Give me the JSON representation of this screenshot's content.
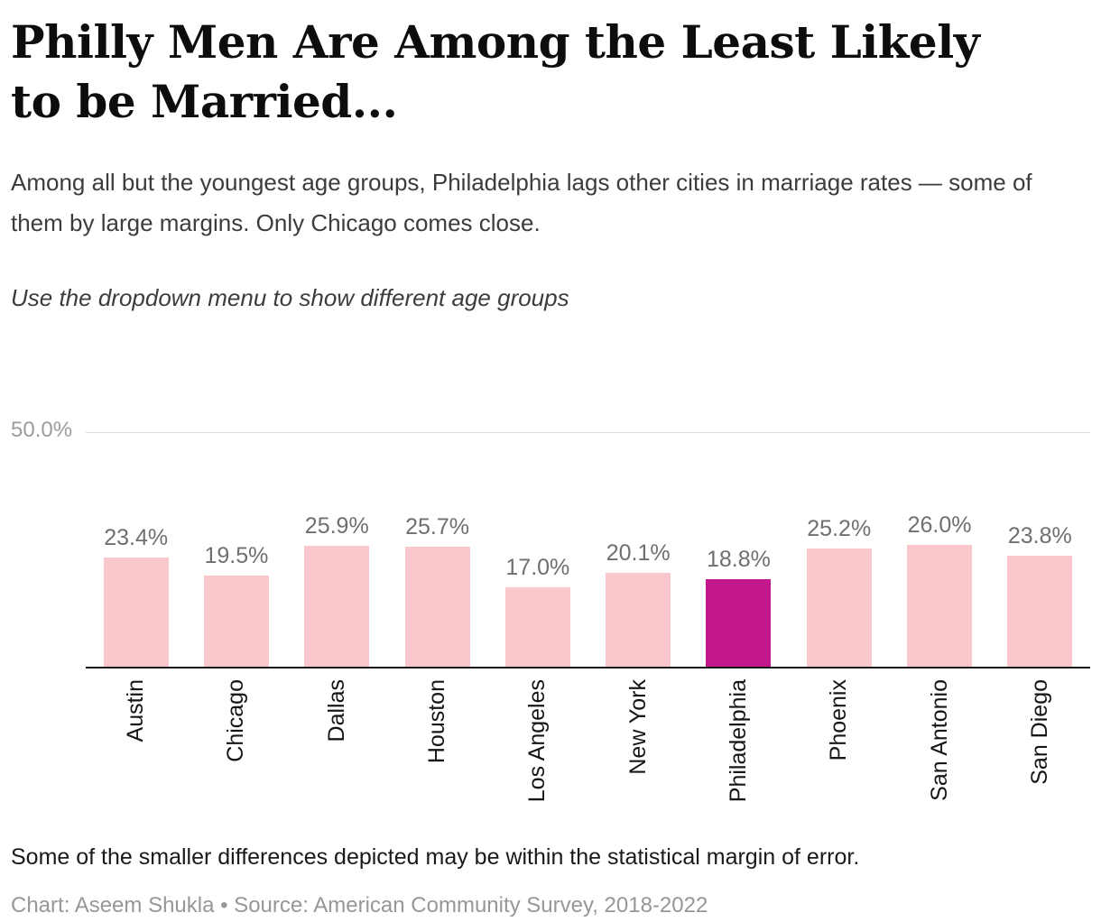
{
  "header": {
    "title": "Philly Men Are Among the Least Likely to be Married...",
    "subtitle": "Among all but the youngest age groups, Philadelphia lags other cities in marriage rates — some of them by large margins. Only Chicago comes close.",
    "instruction": "Use the dropdown menu to show different age groups"
  },
  "chart_data": {
    "type": "bar",
    "title": "Philly Men Are Among the Least Likely to be Married...",
    "categories": [
      "Austin",
      "Chicago",
      "Dallas",
      "Houston",
      "Los Angeles",
      "New York",
      "Philadelphia",
      "Phoenix",
      "San Antonio",
      "San Diego"
    ],
    "values": [
      23.4,
      19.5,
      25.9,
      25.7,
      17.0,
      20.1,
      18.8,
      25.2,
      26.0,
      23.8
    ],
    "value_labels": [
      "23.4%",
      "19.5%",
      "25.9%",
      "25.7%",
      "17.0%",
      "20.1%",
      "18.8%",
      "25.2%",
      "26.0%",
      "23.8%"
    ],
    "highlight_category": "Philadelphia",
    "ylim": [
      0,
      50
    ],
    "y_gridline": {
      "value": 50.0,
      "label": "50.0%"
    },
    "grid": "single-top-gridline",
    "legend": "none",
    "bar_color": "#f9c7cc",
    "highlight_color": "#c2188c"
  },
  "footer": {
    "note": "Some of the smaller differences depicted may be within the statistical margin of error.",
    "credit": "Chart: Aseem Shukla • Source: American Community Survey, 2018-2022"
  }
}
